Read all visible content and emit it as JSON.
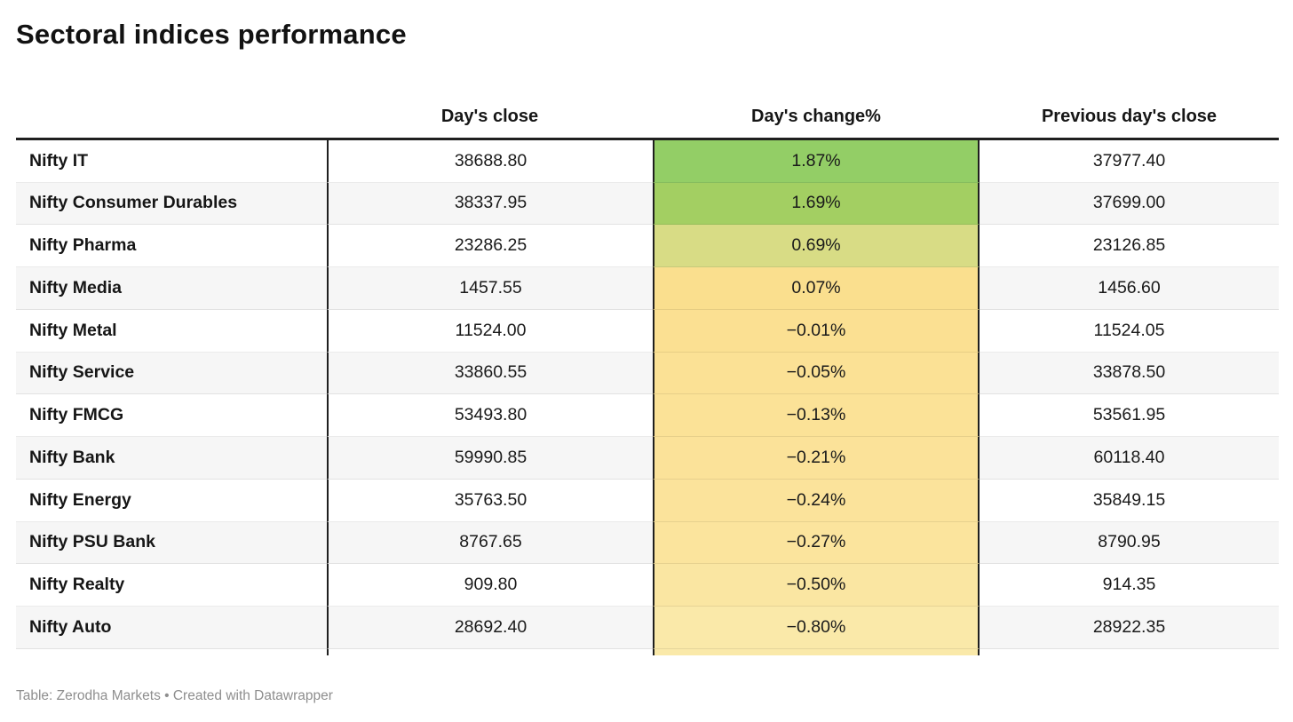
{
  "chart_data": {
    "type": "table",
    "title": "Sectoral indices performance",
    "columns": [
      "",
      "Day's close",
      "Day's change%",
      "Previous day's close"
    ],
    "heatmap_column": "Day's change%",
    "rows": [
      {
        "label": "Nifty IT",
        "close": "38688.80",
        "change": "1.87%",
        "change_value": 1.87,
        "prev": "37977.40",
        "cell_color": "#93ce66"
      },
      {
        "label": "Nifty Consumer Durables",
        "close": "38337.95",
        "change": "1.69%",
        "change_value": 1.69,
        "prev": "37699.00",
        "cell_color": "#a3cf62"
      },
      {
        "label": "Nifty Pharma",
        "close": "23286.25",
        "change": "0.69%",
        "change_value": 0.69,
        "prev": "23126.85",
        "cell_color": "#d8dc85"
      },
      {
        "label": "Nifty Media",
        "close": "1457.55",
        "change": "0.07%",
        "change_value": 0.07,
        "prev": "1456.60",
        "cell_color": "#fadf8e"
      },
      {
        "label": "Nifty Metal",
        "close": "11524.00",
        "change": "−0.01%",
        "change_value": -0.01,
        "prev": "11524.05",
        "cell_color": "#fbe092"
      },
      {
        "label": "Nifty Service",
        "close": "33860.55",
        "change": "−0.05%",
        "change_value": -0.05,
        "prev": "33878.50",
        "cell_color": "#fbe195"
      },
      {
        "label": "Nifty FMCG",
        "close": "53493.80",
        "change": "−0.13%",
        "change_value": -0.13,
        "prev": "53561.95",
        "cell_color": "#fbe297"
      },
      {
        "label": "Nifty Bank",
        "close": "59990.85",
        "change": "−0.21%",
        "change_value": -0.21,
        "prev": "60118.40",
        "cell_color": "#fbe299"
      },
      {
        "label": "Nifty Energy",
        "close": "35763.50",
        "change": "−0.24%",
        "change_value": -0.24,
        "prev": "35849.15",
        "cell_color": "#fbe39b"
      },
      {
        "label": "Nifty PSU Bank",
        "close": "8767.65",
        "change": "−0.27%",
        "change_value": -0.27,
        "prev": "8790.95",
        "cell_color": "#fbe49d"
      },
      {
        "label": "Nifty Realty",
        "close": "909.80",
        "change": "−0.50%",
        "change_value": -0.5,
        "prev": "914.35",
        "cell_color": "#fae6a2"
      },
      {
        "label": "Nifty Auto",
        "close": "28692.40",
        "change": "−0.80%",
        "change_value": -0.8,
        "prev": "28922.35",
        "cell_color": "#fae9a9"
      }
    ],
    "footer": "Table: Zerodha Markets • Created with Datawrapper"
  },
  "colors": {
    "header_rule": "#1f1f1f",
    "column_divider": "#1f1f1f",
    "row_alt_bg": "#f6f6f6",
    "row_border": "rgba(0,0,0,0.08)",
    "positive_high": "#93ce66",
    "negative_low": "#fae9a9",
    "overhang_bg": "#fae9a9",
    "footer_text": "#8e8e8e"
  }
}
